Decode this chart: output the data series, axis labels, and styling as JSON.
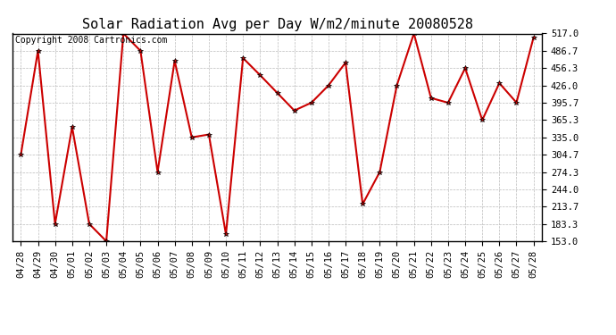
{
  "title": "Solar Radiation Avg per Day W/m2/minute 20080528",
  "copyright": "Copyright 2008 Cartronics.com",
  "x_labels": [
    "04/28",
    "04/29",
    "04/30",
    "05/01",
    "05/02",
    "05/03",
    "05/04",
    "05/05",
    "05/06",
    "05/07",
    "05/08",
    "05/09",
    "05/10",
    "05/11",
    "05/12",
    "05/13",
    "05/14",
    "05/15",
    "05/16",
    "05/17",
    "05/18",
    "05/19",
    "05/20",
    "05/21",
    "05/22",
    "05/23",
    "05/24",
    "05/25",
    "05/26",
    "05/27",
    "05/28"
  ],
  "y_values": [
    304.7,
    486.7,
    183.3,
    353.0,
    183.3,
    153.0,
    517.0,
    486.7,
    274.3,
    469.0,
    335.0,
    340.0,
    165.0,
    474.0,
    444.0,
    413.0,
    382.0,
    395.7,
    426.0,
    466.0,
    218.0,
    274.3,
    426.0,
    517.0,
    404.0,
    395.7,
    456.3,
    365.3,
    430.0,
    396.0,
    510.0
  ],
  "line_color": "#cc0000",
  "marker": "*",
  "marker_color": "#000000",
  "bg_color": "#ffffff",
  "grid_color": "#bbbbbb",
  "ylim": [
    153.0,
    517.0
  ],
  "yticks": [
    153.0,
    183.3,
    213.7,
    244.0,
    274.3,
    304.7,
    335.0,
    365.3,
    395.7,
    426.0,
    456.3,
    486.7,
    517.0
  ],
  "title_fontsize": 11,
  "copyright_fontsize": 7,
  "tick_fontsize": 7.5
}
